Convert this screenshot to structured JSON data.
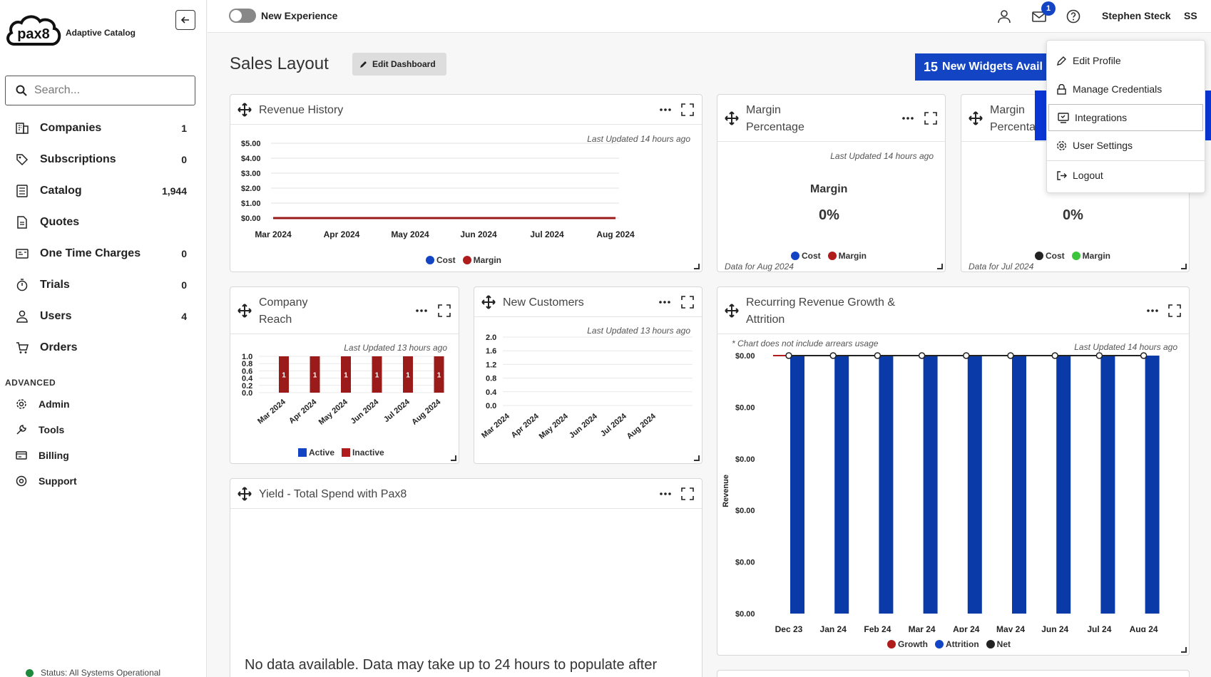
{
  "brand": {
    "logo_text": "pax8",
    "subtitle": "Adaptive Catalog"
  },
  "search": {
    "placeholder": "Search..."
  },
  "nav": [
    {
      "label": "Companies",
      "count": "1",
      "icon": "building-icon"
    },
    {
      "label": "Subscriptions",
      "count": "0",
      "icon": "tag-icon"
    },
    {
      "label": "Catalog",
      "count": "1,944",
      "icon": "catalog-icon"
    },
    {
      "label": "Quotes",
      "count": "",
      "icon": "document-icon"
    },
    {
      "label": "One Time Charges",
      "count": "0",
      "icon": "card-icon"
    },
    {
      "label": "Trials",
      "count": "0",
      "icon": "stopwatch-icon"
    },
    {
      "label": "Users",
      "count": "4",
      "icon": "user-icon"
    },
    {
      "label": "Orders",
      "count": "",
      "icon": "cart-icon"
    }
  ],
  "advanced": {
    "title": "ADVANCED",
    "items": [
      {
        "label": "Admin",
        "icon": "gear-icon"
      },
      {
        "label": "Tools",
        "icon": "wrench-icon"
      },
      {
        "label": "Billing",
        "icon": "billing-icon"
      },
      {
        "label": "Support",
        "icon": "support-icon"
      }
    ]
  },
  "status": "Status: All Systems Operational",
  "topbar": {
    "toggle_label": "New Experience",
    "notification_count": "1",
    "user_name": "Stephen Steck",
    "initials": "SS"
  },
  "header": {
    "title": "Sales Layout",
    "edit_button": "Edit Dashboard",
    "new_widgets_count": "15",
    "new_widgets_label": "New Widgets Avail"
  },
  "widgets": {
    "revenue_history": {
      "title": "Revenue History",
      "updated": "Last Updated 14 hours ago",
      "legend": [
        "Cost",
        "Margin"
      ]
    },
    "margin_pct_1": {
      "title_line1": "Margin",
      "title_line2": "Percentage",
      "updated": "Last Updated 14 hours ago",
      "label": "Margin",
      "value": "0%",
      "legend": [
        "Cost",
        "Margin"
      ],
      "footnote": "Data for Aug 2024"
    },
    "margin_pct_2": {
      "title_line1": "Margin",
      "title_line2": "Percenta",
      "value": "0%",
      "legend": [
        "Cost",
        "Margin"
      ],
      "footnote": "Data for Jul 2024"
    },
    "company_reach": {
      "title_line1": "Company",
      "title_line2": "Reach",
      "updated": "Last Updated 13 hours ago",
      "legend": [
        "Active",
        "Inactive"
      ]
    },
    "new_customers": {
      "title": "New Customers",
      "updated": "Last Updated 13 hours ago"
    },
    "recurring": {
      "title_line1": "Recurring Revenue Growth &",
      "title_line2": "Attrition",
      "note": "* Chart does not include arrears usage",
      "updated": "Last Updated 14 hours ago",
      "legend": [
        "Growth",
        "Attrition",
        "Net"
      ]
    },
    "yield": {
      "title": "Yield - Total Spend with Pax8",
      "nodata": "No data available. Data may take up to 24 hours to populate after"
    }
  },
  "dropdown": {
    "items": [
      {
        "label": "Edit Profile",
        "icon": "pencil-icon"
      },
      {
        "label": "Manage Credentials",
        "icon": "lock-icon"
      },
      {
        "label": "Integrations",
        "icon": "integrations-icon"
      },
      {
        "label": "User Settings",
        "icon": "gear-icon"
      },
      {
        "label": "Logout",
        "icon": "logout-icon"
      }
    ]
  },
  "colors": {
    "accent_blue": "#1244c4",
    "highlight_blue": "#0a36d6",
    "bar_red": "#9b1b1b",
    "bar_blue": "#0a3aa8",
    "legend_blue": "#1244c4",
    "legend_red": "#b01c1c",
    "legend_green": "#3cc43c",
    "legend_dark": "#222222"
  },
  "chart_data": [
    {
      "type": "line",
      "title": "Revenue History",
      "x": [
        "Mar 2024",
        "Apr 2024",
        "May 2024",
        "Jun 2024",
        "Jul 2024",
        "Aug 2024"
      ],
      "yticks": [
        "$5.00",
        "$4.00",
        "$3.00",
        "$2.00",
        "$1.00",
        "$0.00"
      ],
      "ylim": [
        0,
        5
      ],
      "series": [
        {
          "name": "Cost",
          "values": [
            0,
            0,
            0,
            0,
            0,
            0
          ]
        },
        {
          "name": "Margin",
          "values": [
            0,
            0,
            0,
            0,
            0,
            0
          ]
        }
      ]
    },
    {
      "type": "bar",
      "title": "Company Reach",
      "categories": [
        "Mar 2024",
        "Apr 2024",
        "May 2024",
        "Jun 2024",
        "Jul 2024",
        "Aug 2024"
      ],
      "yticks": [
        "1.0",
        "0.8",
        "0.6",
        "0.4",
        "0.2",
        "0.0"
      ],
      "ylim": [
        0,
        1
      ],
      "series": [
        {
          "name": "Active",
          "values": [
            0,
            0,
            0,
            0,
            0,
            0
          ]
        },
        {
          "name": "Inactive",
          "values": [
            1,
            1,
            1,
            1,
            1,
            1
          ]
        }
      ],
      "data_labels": [
        "1",
        "1",
        "1",
        "1",
        "1",
        "1"
      ]
    },
    {
      "type": "line",
      "title": "New Customers",
      "x": [
        "Mar 2024",
        "Apr 2024",
        "May 2024",
        "Jun 2024",
        "Jul 2024",
        "Aug 2024"
      ],
      "yticks": [
        "2.0",
        "1.6",
        "1.2",
        "0.8",
        "0.4",
        "0.0"
      ],
      "ylim": [
        0,
        2
      ],
      "series": []
    },
    {
      "type": "bar",
      "title": "Recurring Revenue Growth & Attrition",
      "ylabel": "Revenue",
      "categories": [
        "Dec 23",
        "Jan 24",
        "Feb 24",
        "Mar 24",
        "Apr 24",
        "May 24",
        "Jun 24",
        "Jul 24",
        "Aug 24"
      ],
      "yticks": [
        "$0.00",
        "$0.00",
        "$0.00",
        "$0.00",
        "$0.00",
        "$0.00"
      ],
      "series": [
        {
          "name": "Growth",
          "values": [
            0,
            0,
            0,
            0,
            0,
            0,
            0,
            0,
            0
          ]
        },
        {
          "name": "Attrition",
          "values": [
            0,
            0,
            0,
            0,
            0,
            0,
            0,
            0,
            0
          ]
        },
        {
          "name": "Net",
          "values": [
            0,
            0,
            0,
            0,
            0,
            0,
            0,
            0,
            0
          ]
        }
      ]
    }
  ]
}
